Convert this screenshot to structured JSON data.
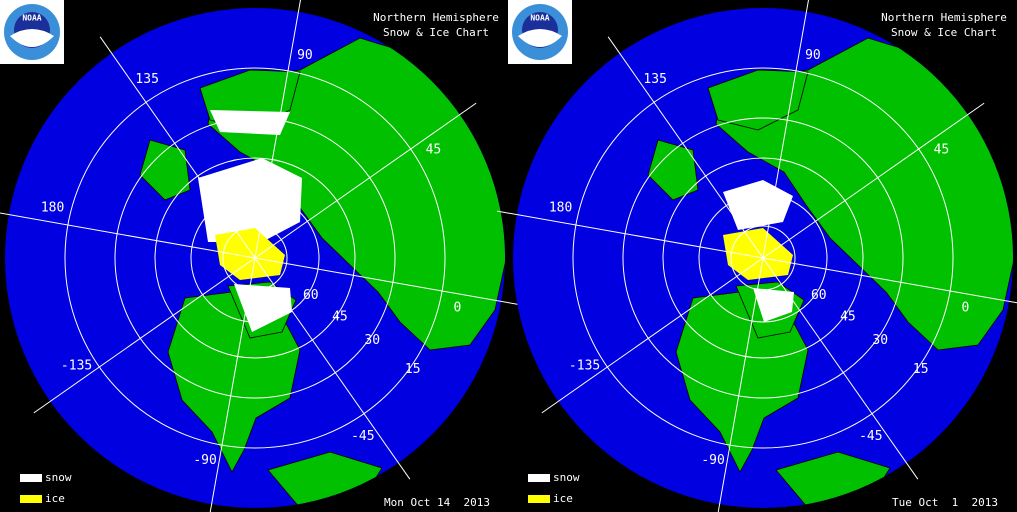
{
  "panels": [
    {
      "logo": "NOAA",
      "title_lines": [
        "Northern Hemisphere",
        "Snow & Ice Chart"
      ],
      "longitude_labels": [
        "90",
        "135",
        "180",
        "-135",
        "-90",
        "-45",
        "0",
        "45"
      ],
      "latitude_labels": [
        "60",
        "45",
        "30",
        "15"
      ],
      "legend": [
        "snow",
        "ice"
      ],
      "date": "Mon Oct 14  2013"
    },
    {
      "logo": "NOAA",
      "title_lines": [
        "Northern Hemisphere",
        "Snow & Ice Chart"
      ],
      "longitude_labels": [
        "90",
        "135",
        "180",
        "-135",
        "-90",
        "-45",
        "0",
        "45"
      ],
      "latitude_labels": [
        "60",
        "45",
        "30",
        "15"
      ],
      "legend": [
        "snow",
        "ice"
      ],
      "date": "Tue Oct  1  2013"
    }
  ]
}
